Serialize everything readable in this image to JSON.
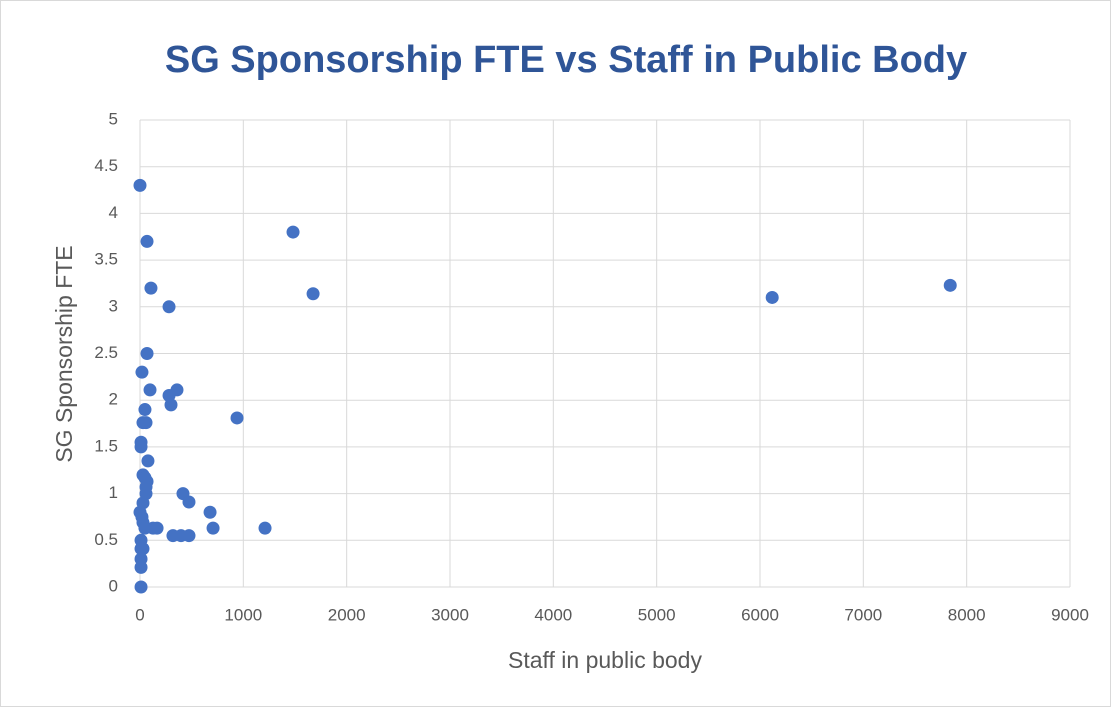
{
  "chart_data": {
    "type": "scatter",
    "title": "SG Sponsorship FTE vs Staff in Public Body",
    "x_label": "Staff in public body",
    "y_label": "SG Sponsorship FTE",
    "color": "#4472c4",
    "grid": true,
    "xlim": [
      0,
      9000
    ],
    "xticks": [
      0,
      1000,
      2000,
      3000,
      4000,
      5000,
      6000,
      7000,
      8000,
      9000
    ],
    "ylim": [
      0,
      5
    ],
    "yticks": [
      0,
      0.5,
      1,
      1.5,
      2,
      2.5,
      3,
      3.5,
      4,
      4.5,
      5
    ],
    "x": [
      0,
      68,
      1481,
      1675,
      6118,
      7841,
      106,
      281,
      68,
      19,
      97,
      358,
      281,
      300,
      48,
      939,
      29,
      58,
      10,
      10,
      77,
      29,
      48,
      68,
      58,
      58,
      416,
      474,
      29,
      0,
      678,
      19,
      29,
      48,
      126,
      165,
      707,
      1210,
      319,
      397,
      474,
      10,
      29,
      10,
      10,
      10,
      10
    ],
    "values": [
      4.3,
      3.7,
      3.8,
      3.14,
      3.1,
      3.23,
      3.2,
      3.0,
      2.5,
      2.3,
      2.11,
      2.11,
      2.05,
      1.95,
      1.9,
      1.81,
      1.76,
      1.76,
      1.55,
      1.5,
      1.35,
      1.2,
      1.17,
      1.13,
      1.07,
      1.0,
      1.0,
      0.91,
      0.9,
      0.8,
      0.8,
      0.75,
      0.69,
      0.63,
      0.63,
      0.63,
      0.63,
      0.63,
      0.55,
      0.55,
      0.55,
      0.5,
      0.41,
      0.41,
      0.3,
      0.21,
      0.0
    ]
  }
}
